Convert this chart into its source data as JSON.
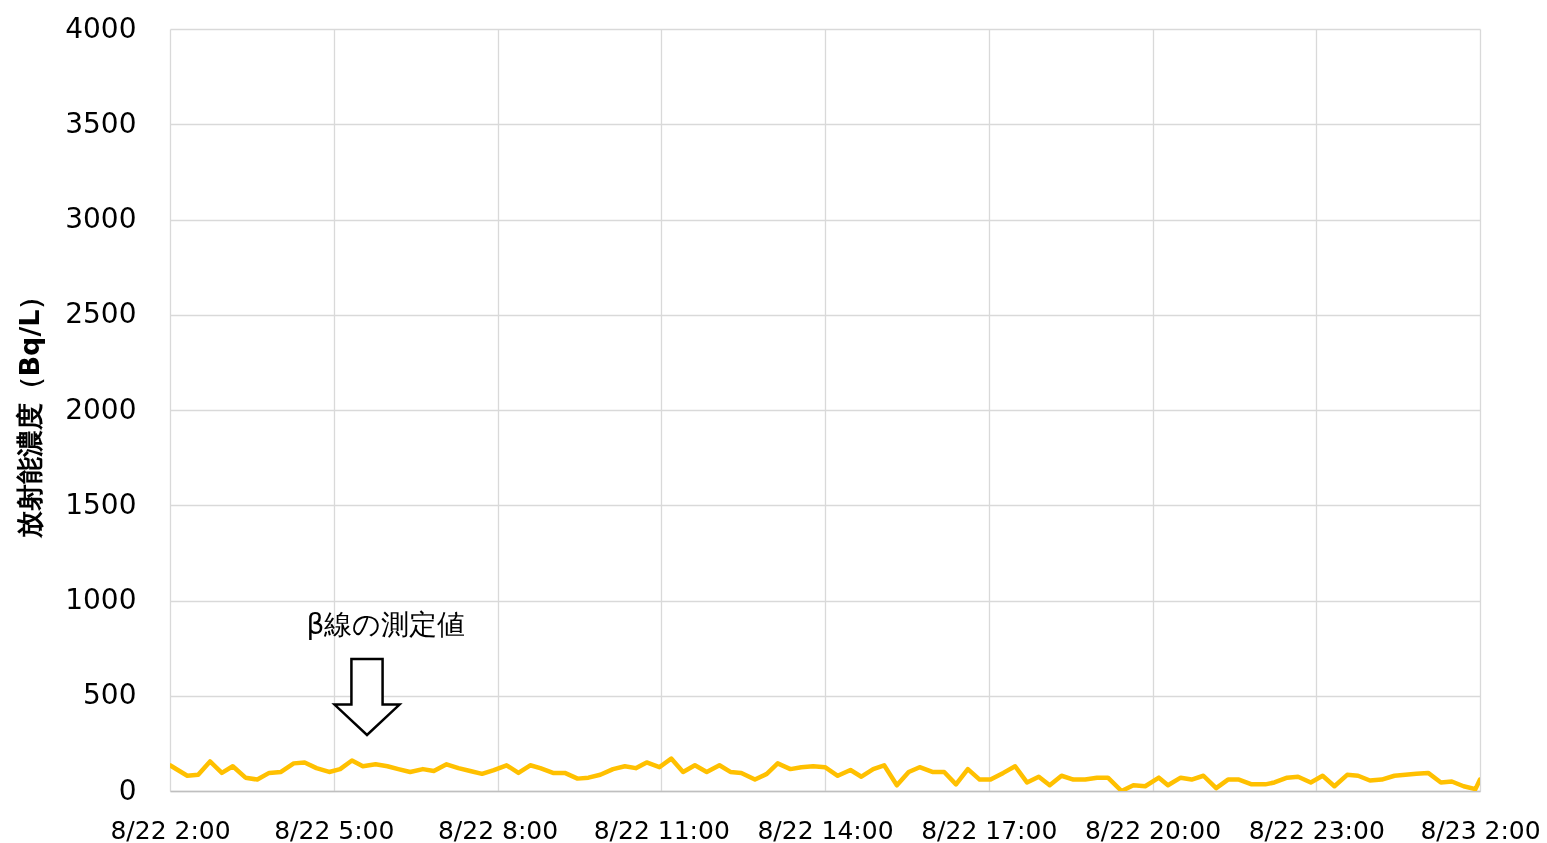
{
  "chart_data": {
    "type": "line",
    "ylabel": "放射能濃度（Bq/L）",
    "x": [
      "--08-22T02:00",
      "--08-22T02:19",
      "--08-22T02:31",
      "--08-22T02:44",
      "--08-22T02:57",
      "--08-22T03:09",
      "--08-22T03:23",
      "--08-22T03:36",
      "--08-22T03:49",
      "--08-22T04:02",
      "--08-22T04:16",
      "--08-22T04:28",
      "--08-22T04:41",
      "--08-22T04:55",
      "--08-22T05:07",
      "--08-22T05:20",
      "--08-22T05:32",
      "--08-22T05:46",
      "--08-22T05:59",
      "--08-22T06:11",
      "--08-22T06:24",
      "--08-22T06:38",
      "--08-22T06:50",
      "--08-22T07:04",
      "--08-22T07:17",
      "--08-22T07:30",
      "--08-22T07:43",
      "--08-22T07:56",
      "--08-22T08:10",
      "--08-22T08:23",
      "--08-22T08:36",
      "--08-22T08:47",
      "--08-22T09:01",
      "--08-22T09:14",
      "--08-22T09:28",
      "--08-22T09:40",
      "--08-22T09:53",
      "--08-22T10:07",
      "--08-22T10:20",
      "--08-22T10:32",
      "--08-22T10:44",
      "--08-22T10:58",
      "--08-22T11:11",
      "--08-22T11:24",
      "--08-22T11:37",
      "--08-22T11:50",
      "--08-22T12:04",
      "--08-22T12:16",
      "--08-22T12:28",
      "--08-22T12:43",
      "--08-22T12:56",
      "--08-22T13:08",
      "--08-22T13:22",
      "--08-22T13:34",
      "--08-22T13:47",
      "--08-22T14:00",
      "--08-22T14:14",
      "--08-22T14:28",
      "--08-22T14:40",
      "--08-22T14:53",
      "--08-22T15:05",
      "--08-22T15:19",
      "--08-22T15:32",
      "--08-22T15:44",
      "--08-22T15:58",
      "--08-22T16:11",
      "--08-22T16:24",
      "--08-22T16:37",
      "--08-22T16:50",
      "--08-22T17:02",
      "--08-22T17:16",
      "--08-22T17:29",
      "--08-22T17:42",
      "--08-22T17:55",
      "--08-22T18:07",
      "--08-22T18:20",
      "--08-22T18:33",
      "--08-22T18:46",
      "--08-22T18:59",
      "--08-22T19:11",
      "--08-22T19:26",
      "--08-22T19:39",
      "--08-22T19:52",
      "--08-22T20:07",
      "--08-22T20:17",
      "--08-22T20:31",
      "--08-22T20:43",
      "--08-22T20:56",
      "--08-22T21:10",
      "--08-22T21:23",
      "--08-22T21:35",
      "--08-22T21:49",
      "--08-22T22:04",
      "--08-22T22:14",
      "--08-22T22:28",
      "--08-22T22:40",
      "--08-22T22:54",
      "--08-22T23:07",
      "--08-22T23:20",
      "--08-22T23:34",
      "--08-22T23:46",
      "--08-22T23:59",
      "--08-23T00:12",
      "--08-23T00:26",
      "--08-23T00:38",
      "--08-23T00:50",
      "--08-23T01:03",
      "--08-23T01:17",
      "--08-23T01:29",
      "--08-23T01:42",
      "--08-23T01:55",
      "--08-23T02:00"
    ],
    "series": [
      {
        "color": "#ffc000",
        "values": [
          135,
          80,
          85,
          155,
          95,
          130,
          70,
          60,
          95,
          100,
          145,
          150,
          120,
          100,
          115,
          160,
          130,
          140,
          130,
          115,
          100,
          115,
          105,
          140,
          120,
          105,
          90,
          110,
          135,
          95,
          135,
          120,
          95,
          95,
          65,
          70,
          85,
          115,
          130,
          120,
          150,
          125,
          170,
          100,
          135,
          100,
          135,
          100,
          95,
          60,
          90,
          145,
          115,
          125,
          130,
          125,
          80,
          110,
          75,
          115,
          135,
          30,
          100,
          125,
          100,
          100,
          35,
          115,
          60,
          60,
          95,
          130,
          45,
          75,
          30,
          80,
          60,
          60,
          70,
          70,
          0,
          30,
          25,
          70,
          30,
          70,
          60,
          80,
          15,
          60,
          60,
          35,
          35,
          45,
          70,
          75,
          45,
          80,
          25,
          85,
          80,
          55,
          60,
          80,
          85,
          90,
          95,
          45,
          50,
          25,
          10,
          60
        ]
      }
    ],
    "xlim": [
      "--08-22T02:00",
      "--08-23T02:00"
    ],
    "xticks": [
      {
        "value": "--08-22T02:00",
        "label": "8/22 2:00"
      },
      {
        "value": "--08-22T05:00",
        "label": "8/22 5:00"
      },
      {
        "value": "--08-22T08:00",
        "label": "8/22 8:00"
      },
      {
        "value": "--08-22T11:00",
        "label": "8/22 11:00"
      },
      {
        "value": "--08-22T14:00",
        "label": "8/22 14:00"
      },
      {
        "value": "--08-22T17:00",
        "label": "8/22 17:00"
      },
      {
        "value": "--08-22T20:00",
        "label": "8/22 20:00"
      },
      {
        "value": "--08-22T23:00",
        "label": "8/22 23:00"
      },
      {
        "value": "--08-23T02:00",
        "label": "8/23 2:00"
      }
    ],
    "ylim": [
      0,
      4000
    ],
    "yticks": [
      0,
      500,
      1000,
      1500,
      2000,
      2500,
      3000,
      3500,
      4000
    ],
    "grid": true,
    "annotations": [
      "β線の測定値"
    ]
  }
}
